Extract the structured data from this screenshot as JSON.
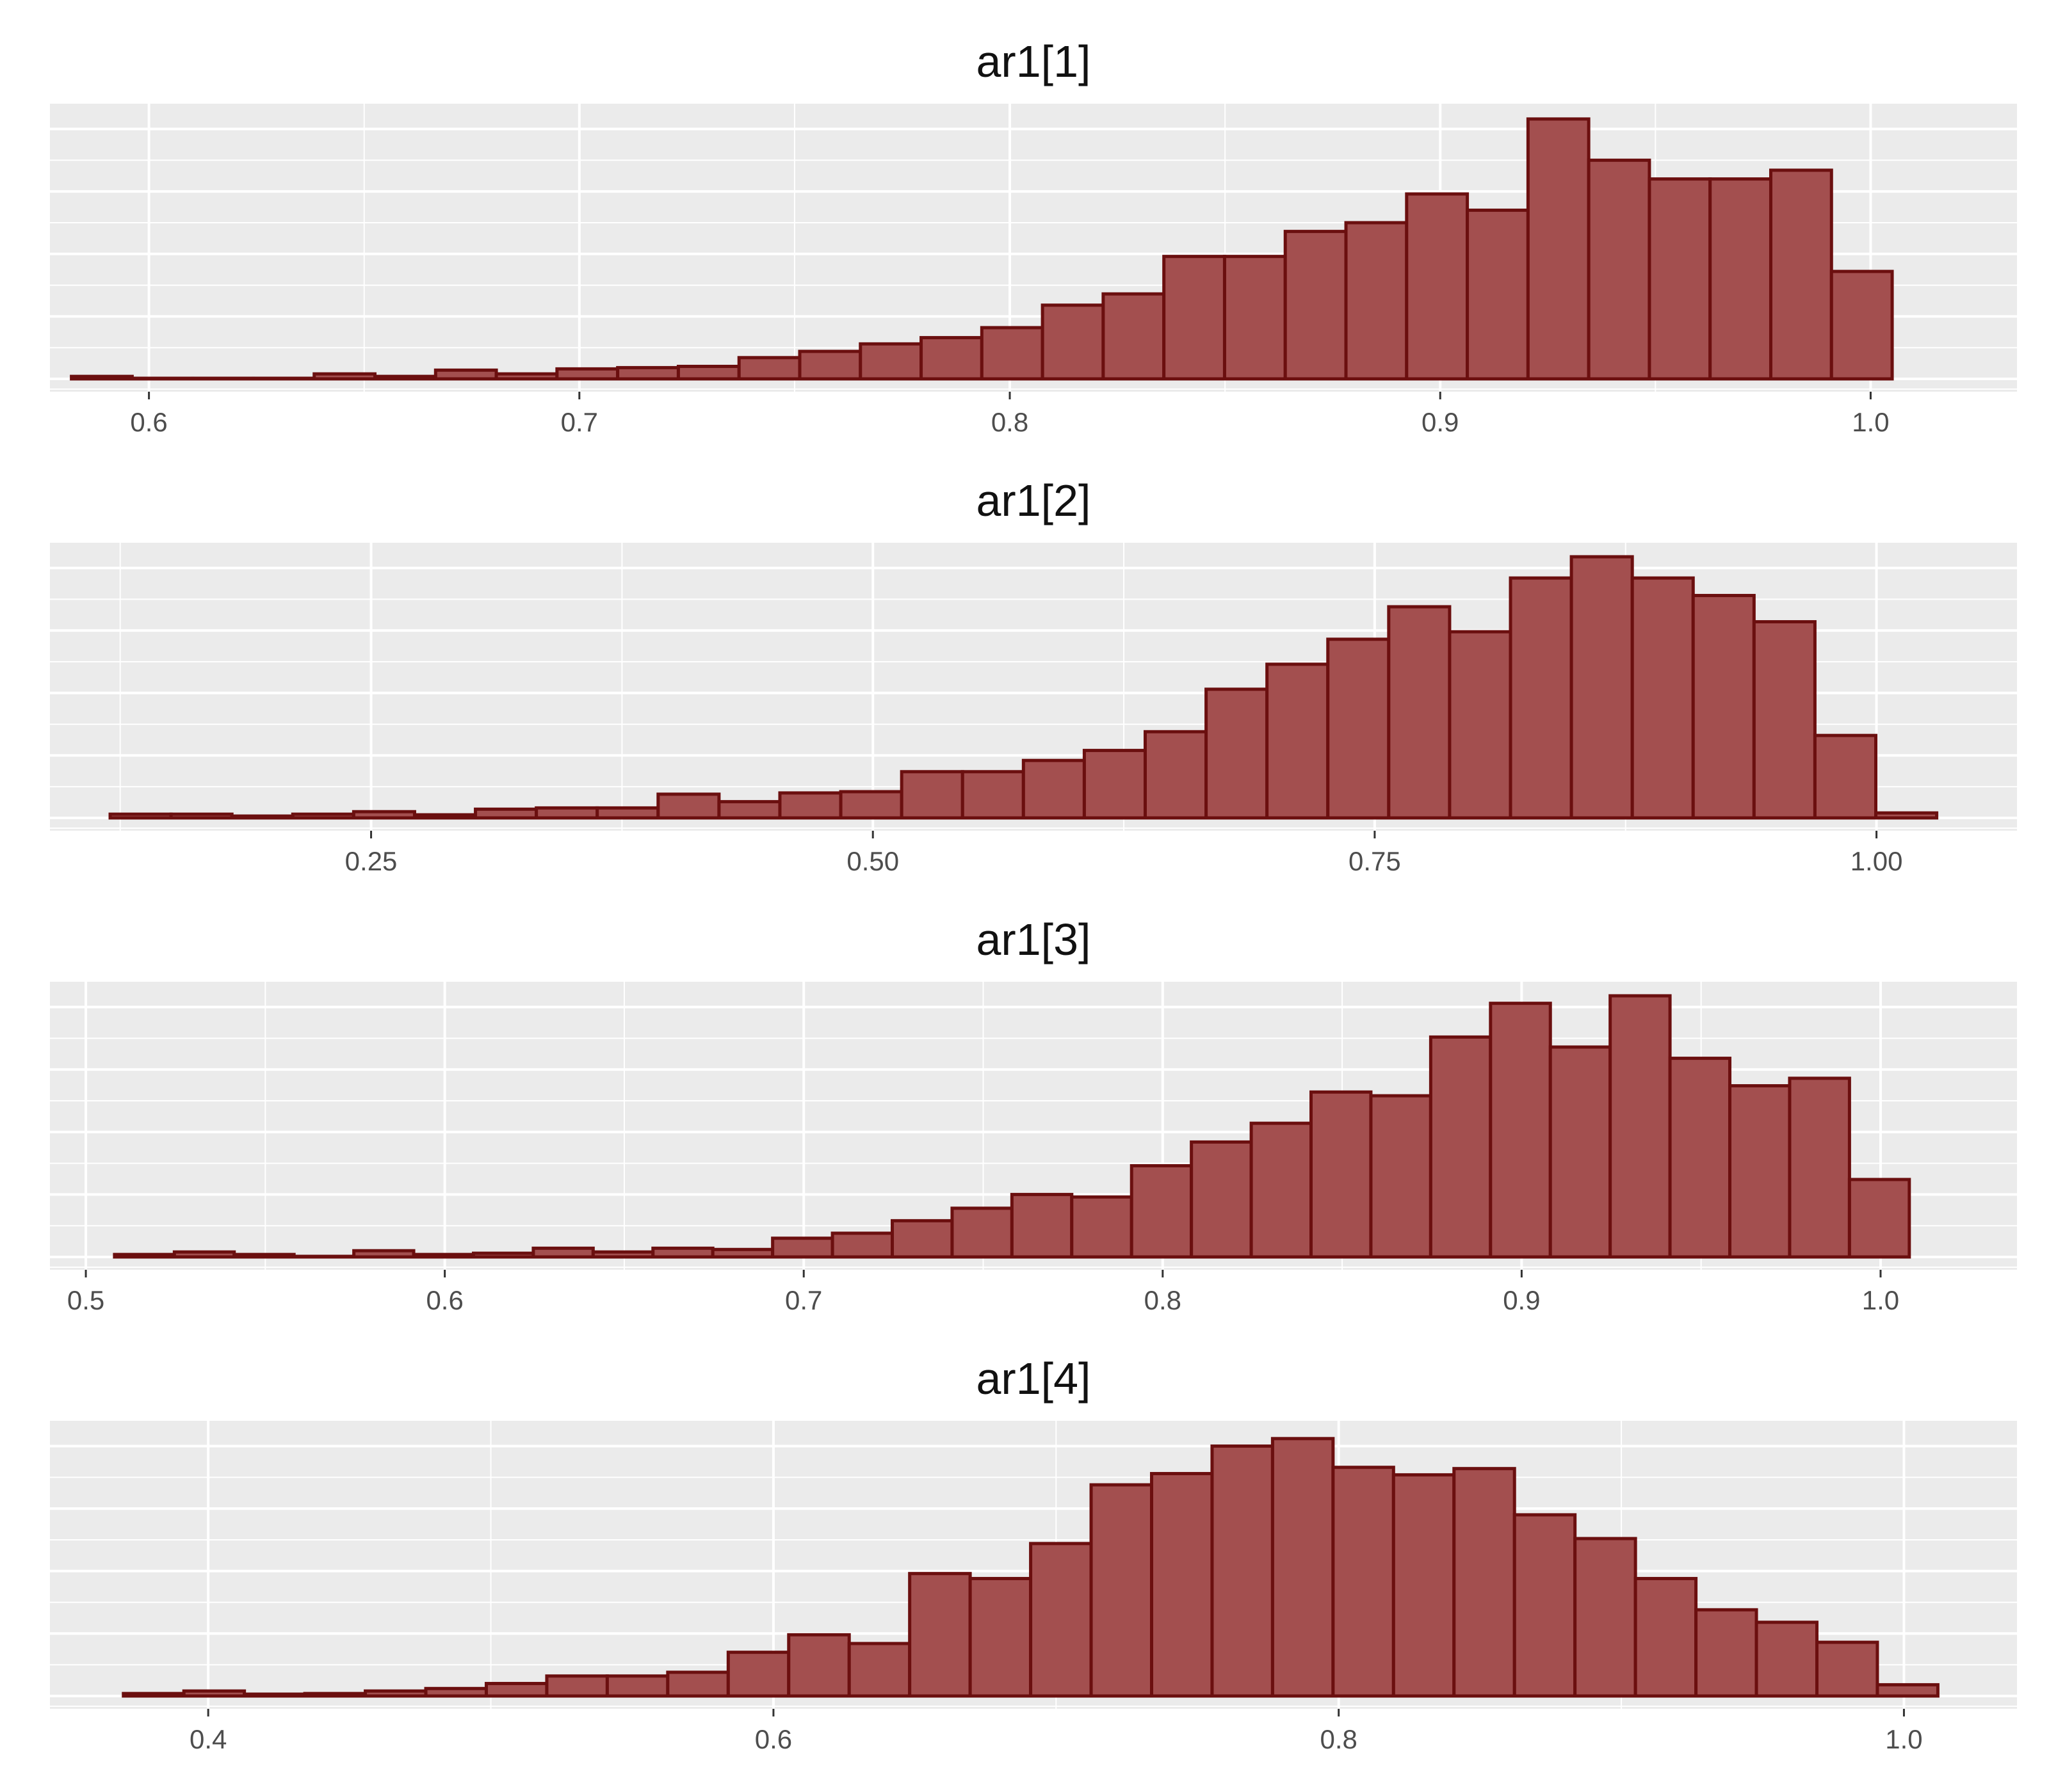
{
  "chart_data": [
    {
      "type": "bar",
      "title": "ar1[1]",
      "xlim": [
        0.577,
        1.034
      ],
      "xticks": [
        0.6,
        0.7,
        0.8,
        0.9,
        1.0
      ],
      "tick_labels": [
        "0.6",
        "0.7",
        "0.8",
        "0.9",
        "1.0"
      ],
      "bin_range": [
        0.582,
        1.005
      ],
      "ymax": 420,
      "values": [
        4,
        1,
        1,
        1,
        8,
        4,
        14,
        8,
        16,
        18,
        20,
        34,
        44,
        56,
        66,
        82,
        118,
        136,
        196,
        196,
        236,
        250,
        296,
        270,
        416,
        350,
        320,
        320,
        334,
        172
      ],
      "grid": true,
      "legend": "none"
    },
    {
      "type": "bar",
      "title": "ar1[2]",
      "xlim": [
        0.09,
        1.07
      ],
      "xticks": [
        0.25,
        0.5,
        0.75,
        1.0
      ],
      "tick_labels": [
        "0.25",
        "0.50",
        "0.75",
        "1.00"
      ],
      "bin_range": [
        0.12,
        1.03
      ],
      "ymax": 420,
      "values": [
        6,
        6,
        3,
        6,
        10,
        5,
        14,
        16,
        16,
        38,
        26,
        40,
        42,
        74,
        74,
        92,
        108,
        138,
        206,
        246,
        286,
        338,
        298,
        384,
        418,
        384,
        356,
        314,
        132,
        8
      ],
      "grid": true,
      "legend": "none"
    },
    {
      "type": "bar",
      "title": "ar1[3]",
      "xlim": [
        0.49,
        1.038
      ],
      "xticks": [
        0.5,
        0.6,
        0.7,
        0.8,
        0.9,
        1.0
      ],
      "tick_labels": [
        "0.5",
        "0.6",
        "0.7",
        "0.8",
        "0.9",
        "1.0"
      ],
      "bin_range": [
        0.508,
        1.008
      ],
      "ymax": 420,
      "values": [
        4,
        8,
        4,
        1,
        10,
        4,
        6,
        14,
        8,
        14,
        12,
        30,
        38,
        58,
        78,
        100,
        96,
        146,
        184,
        214,
        264,
        258,
        352,
        406,
        336,
        418,
        318,
        274,
        286,
        124
      ],
      "grid": true,
      "legend": "none"
    },
    {
      "type": "bar",
      "title": "ar1[4]",
      "xlim": [
        0.344,
        1.04
      ],
      "xticks": [
        0.4,
        0.6,
        0.8,
        1.0
      ],
      "tick_labels": [
        "0.4",
        "0.6",
        "0.8",
        "1.0"
      ],
      "bin_range": [
        0.37,
        1.012
      ],
      "ymax": 420,
      "values": [
        4,
        8,
        3,
        4,
        8,
        12,
        20,
        32,
        32,
        38,
        70,
        98,
        84,
        196,
        188,
        244,
        338,
        356,
        400,
        412,
        366,
        354,
        364,
        290,
        252,
        188,
        138,
        118,
        86,
        18
      ],
      "grid": true,
      "legend": "none"
    }
  ]
}
